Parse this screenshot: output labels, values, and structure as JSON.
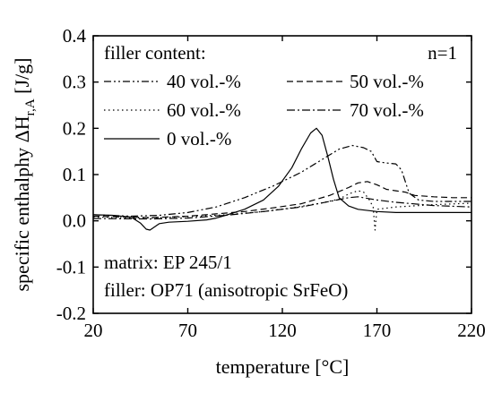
{
  "chart_data": {
    "type": "line",
    "xlabel": "temperature [°C]",
    "ylabel_main": "specific enthalphy ΔH",
    "ylabel_sub": "r,A",
    "ylabel_unit": " [J/g]",
    "xlim": [
      20,
      220
    ],
    "ylim": [
      -0.2,
      0.4
    ],
    "xticks": [
      20,
      70,
      120,
      170,
      220
    ],
    "yticks": [
      -0.2,
      -0.1,
      0.0,
      0.1,
      0.2,
      0.3,
      0.4
    ],
    "ytick_labels": [
      "-0.2",
      "-0.1",
      "0.0",
      "0.1",
      "0.2",
      "0.3",
      "0.4"
    ],
    "legend_title": "filler content:",
    "legend_placement": "top",
    "grid": false,
    "annotations": {
      "n": "n=1",
      "matrix": "matrix: EP 245/1",
      "filler": "filler: OP71 (anisotropic SrFeO)"
    },
    "series": [
      {
        "name": "0 vol.-%",
        "dash": "solid",
        "points": [
          [
            20,
            0.013
          ],
          [
            30,
            0.012
          ],
          [
            40,
            0.008
          ],
          [
            45,
            -0.005
          ],
          [
            48,
            -0.018
          ],
          [
            50,
            -0.02
          ],
          [
            55,
            -0.006
          ],
          [
            60,
            -0.003
          ],
          [
            70,
            -0.001
          ],
          [
            80,
            0.002
          ],
          [
            85,
            0.006
          ],
          [
            90,
            0.012
          ],
          [
            100,
            0.025
          ],
          [
            110,
            0.045
          ],
          [
            118,
            0.075
          ],
          [
            125,
            0.115
          ],
          [
            130,
            0.155
          ],
          [
            135,
            0.19
          ],
          [
            138,
            0.2
          ],
          [
            141,
            0.185
          ],
          [
            144,
            0.14
          ],
          [
            147,
            0.09
          ],
          [
            150,
            0.05
          ],
          [
            155,
            0.032
          ],
          [
            160,
            0.025
          ],
          [
            170,
            0.02
          ],
          [
            180,
            0.018
          ],
          [
            200,
            0.018
          ],
          [
            220,
            0.018
          ]
        ]
      },
      {
        "name": "40 vol.-%",
        "dash": "dash-dot-dot",
        "points": [
          [
            20,
            0.013
          ],
          [
            40,
            0.01
          ],
          [
            55,
            0.012
          ],
          [
            70,
            0.018
          ],
          [
            85,
            0.03
          ],
          [
            100,
            0.05
          ],
          [
            115,
            0.075
          ],
          [
            130,
            0.105
          ],
          [
            140,
            0.13
          ],
          [
            150,
            0.155
          ],
          [
            157,
            0.163
          ],
          [
            163,
            0.158
          ],
          [
            167,
            0.15
          ],
          [
            170,
            0.128
          ],
          [
            175,
            0.125
          ],
          [
            180,
            0.123
          ],
          [
            183,
            0.11
          ],
          [
            187,
            0.06
          ],
          [
            192,
            0.045
          ],
          [
            200,
            0.042
          ],
          [
            220,
            0.042
          ]
        ]
      },
      {
        "name": "50 vol.-%",
        "dash": "dashed",
        "points": [
          [
            20,
            0.01
          ],
          [
            50,
            0.007
          ],
          [
            70,
            0.01
          ],
          [
            85,
            0.015
          ],
          [
            100,
            0.02
          ],
          [
            115,
            0.028
          ],
          [
            130,
            0.037
          ],
          [
            145,
            0.055
          ],
          [
            155,
            0.072
          ],
          [
            160,
            0.082
          ],
          [
            165,
            0.085
          ],
          [
            170,
            0.078
          ],
          [
            175,
            0.068
          ],
          [
            180,
            0.065
          ],
          [
            185,
            0.062
          ],
          [
            190,
            0.055
          ],
          [
            200,
            0.052
          ],
          [
            210,
            0.05
          ],
          [
            220,
            0.05
          ]
        ]
      },
      {
        "name": "60 vol.-%",
        "dash": "dotted",
        "points": [
          [
            20,
            0.008
          ],
          [
            50,
            0.006
          ],
          [
            70,
            0.009
          ],
          [
            90,
            0.013
          ],
          [
            110,
            0.02
          ],
          [
            125,
            0.028
          ],
          [
            140,
            0.038
          ],
          [
            150,
            0.047
          ],
          [
            155,
            0.058
          ],
          [
            160,
            0.065
          ],
          [
            163,
            0.062
          ],
          [
            166,
            0.045
          ],
          [
            168,
            0.03
          ],
          [
            169,
            -0.02
          ],
          [
            170,
            0.025
          ],
          [
            180,
            0.03
          ],
          [
            200,
            0.035
          ],
          [
            220,
            0.038
          ]
        ]
      },
      {
        "name": "70 vol.-%",
        "dash": "dash-dot",
        "points": [
          [
            20,
            0.005
          ],
          [
            50,
            0.004
          ],
          [
            70,
            0.006
          ],
          [
            90,
            0.012
          ],
          [
            110,
            0.02
          ],
          [
            130,
            0.03
          ],
          [
            145,
            0.042
          ],
          [
            155,
            0.05
          ],
          [
            160,
            0.052
          ],
          [
            170,
            0.045
          ],
          [
            180,
            0.04
          ],
          [
            200,
            0.033
          ],
          [
            220,
            0.03
          ]
        ]
      }
    ]
  }
}
